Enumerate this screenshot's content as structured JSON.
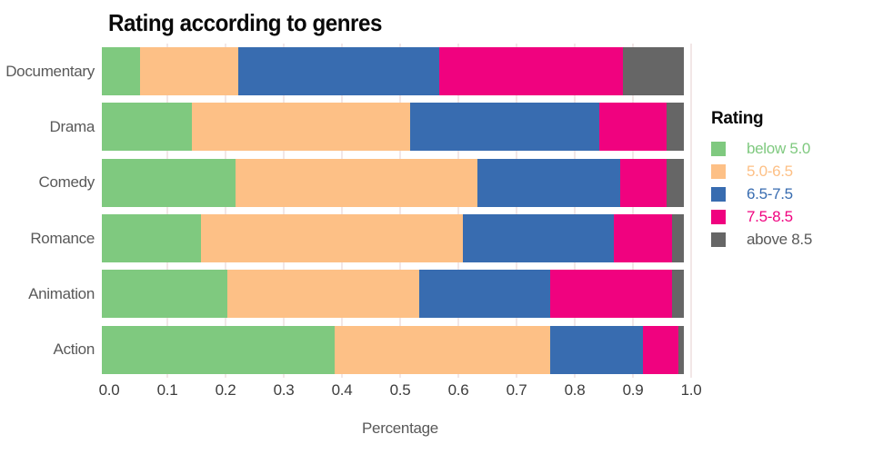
{
  "chart_data": {
    "type": "bar",
    "orientation": "horizontal",
    "stacked": true,
    "title": "Rating according to genres",
    "xlabel": "Percentage",
    "legend_title": "Rating",
    "legend_position": "right",
    "grid": true,
    "categories": [
      "Documentary",
      "Drama",
      "Comedy",
      "Romance",
      "Animation",
      "Action"
    ],
    "xlim": [
      0.0,
      1.0
    ],
    "x_ticks": [
      "0.0",
      "0.1",
      "0.2",
      "0.3",
      "0.4",
      "0.5",
      "0.6",
      "0.7",
      "0.8",
      "0.9",
      "1.0"
    ],
    "series": [
      {
        "name": "below 5.0",
        "color": "#7fc97f",
        "label_color": "#7fc97f",
        "values": [
          0.065,
          0.155,
          0.23,
          0.17,
          0.215,
          0.4
        ]
      },
      {
        "name": "5.0-6.5",
        "color": "#fdc086",
        "label_color": "#fdc086",
        "values": [
          0.17,
          0.375,
          0.415,
          0.45,
          0.33,
          0.37
        ]
      },
      {
        "name": "6.5-7.5",
        "color": "#386cb0",
        "label_color": "#386cb0",
        "values": [
          0.345,
          0.325,
          0.245,
          0.26,
          0.225,
          0.16
        ]
      },
      {
        "name": "7.5-8.5",
        "color": "#f0027f",
        "label_color": "#f0027f",
        "values": [
          0.315,
          0.115,
          0.08,
          0.1,
          0.21,
          0.06
        ]
      },
      {
        "name": "above 8.5",
        "color": "#666666",
        "label_color": "#595959",
        "values": [
          0.105,
          0.03,
          0.03,
          0.02,
          0.02,
          0.01
        ]
      }
    ]
  },
  "colors": {
    "background": "#ffffff",
    "grid": "#f2e7e7",
    "title": "#0a0a0a",
    "category_label": "#595959",
    "tick_label": "#3d3d3d",
    "axis_label": "#595959"
  }
}
